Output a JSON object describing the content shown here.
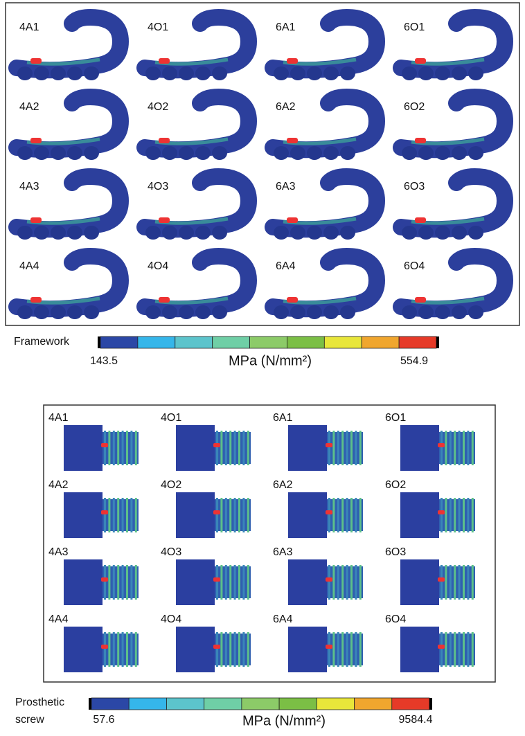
{
  "framework": {
    "panels": [
      [
        "4A1",
        "4O1",
        "6A1",
        "6O1"
      ],
      [
        "4A2",
        "4O2",
        "6A2",
        "6O2"
      ],
      [
        "4A3",
        "4O3",
        "6A3",
        "6O3"
      ],
      [
        "4A4",
        "4O4",
        "6A4",
        "6O4"
      ]
    ],
    "scale": {
      "label": "Framework",
      "min": "143.5",
      "unit": "MPa (N/mm²)",
      "max": "554.9"
    }
  },
  "screw": {
    "panels": [
      [
        "4A1",
        "4O1",
        "6A1",
        "6O1"
      ],
      [
        "4A2",
        "4O2",
        "6A2",
        "6O2"
      ],
      [
        "4A3",
        "4O3",
        "6A3",
        "6O3"
      ],
      [
        "4A4",
        "4O4",
        "6A4",
        "6O4"
      ]
    ],
    "scale": {
      "label_line1": "Prosthetic",
      "label_line2": "screw",
      "min": "57.6",
      "unit": "MPa (N/mm²)",
      "max": "9584.4"
    }
  }
}
